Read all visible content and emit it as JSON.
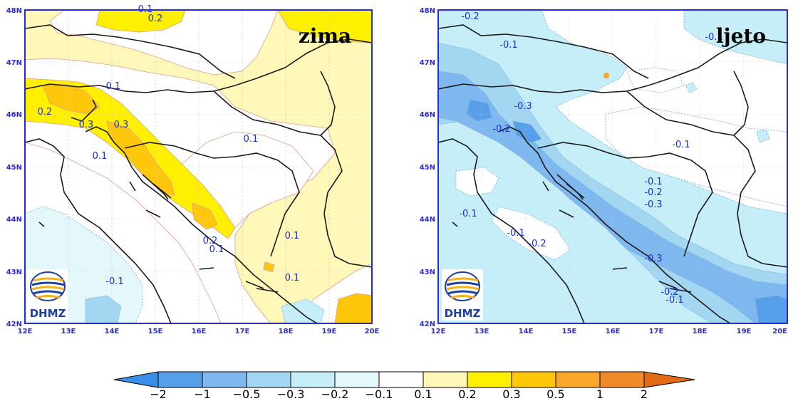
{
  "maps": [
    {
      "season": "zima",
      "lat_labels": [
        "48N",
        "47N",
        "46N",
        "45N",
        "44N",
        "43N",
        "42N"
      ],
      "lon_labels": [
        "12E",
        "13E",
        "14E",
        "15E",
        "16E",
        "17E",
        "18E",
        "19E",
        "20E"
      ],
      "contour_labels": [
        "0.2",
        "0.1",
        "0.2",
        "0.3",
        "0.3",
        "0.1",
        "0.1",
        "0.1",
        "0.2",
        "0.1",
        "0.1",
        "0.1",
        "-0.1"
      ],
      "logo": "DHMZ"
    },
    {
      "season": "ljeto",
      "lat_labels": [
        "48N",
        "47N",
        "46N",
        "45N",
        "44N",
        "43N",
        "42N"
      ],
      "lon_labels": [
        "12E",
        "13E",
        "14E",
        "15E",
        "16E",
        "17E",
        "18E",
        "19E",
        "20E"
      ],
      "contour_labels": [
        "-0.2",
        "-0.1",
        "-0.1",
        "-0.3",
        "-0.2",
        "-0.1",
        "-0.1",
        "-0.2",
        "-0.3",
        "-0.1",
        "-0.1",
        "-0.2",
        "-0.3",
        "-0.2",
        "-0.1"
      ],
      "logo": "DHMZ"
    }
  ],
  "colorbar": {
    "labels": [
      "−2",
      "−1",
      "−0.5",
      "−0.3",
      "−0.2",
      "−0.1",
      "0.1",
      "0.2",
      "0.3",
      "0.5",
      "1",
      "2"
    ],
    "colors": [
      "#3a8fe6",
      "#57a0e9",
      "#7eb8ee",
      "#a3d6f1",
      "#c6eef8",
      "#e4f7fb",
      "#ffffff",
      "#fff8b8",
      "#fff000",
      "#ffc70a",
      "#f8a72c",
      "#f38a28",
      "#e06b14"
    ]
  }
}
